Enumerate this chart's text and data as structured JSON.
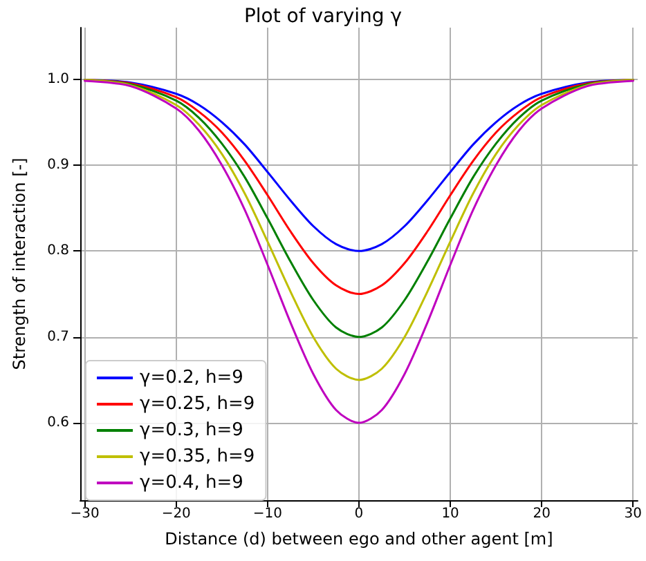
{
  "chart_data": {
    "type": "line",
    "title": "Plot of varying γ",
    "xlabel": "Distance (d) between ego and other agent [m]",
    "ylabel": "Strength of interaction [-]",
    "x": [
      -30,
      -25,
      -20,
      -17.5,
      -15,
      -12.5,
      -10,
      -7.5,
      -5,
      -2.5,
      0,
      2.5,
      5,
      7.5,
      10,
      12.5,
      15,
      17.5,
      20,
      25,
      30
    ],
    "series": [
      {
        "name": "γ=0.2, h=9",
        "color": "#0000ff",
        "values": [
          0.999,
          0.996,
          0.983,
          0.97,
          0.95,
          0.924,
          0.892,
          0.859,
          0.829,
          0.808,
          0.8,
          0.808,
          0.829,
          0.859,
          0.892,
          0.924,
          0.95,
          0.97,
          0.983,
          0.996,
          0.999
        ]
      },
      {
        "name": "γ=0.25, h=9",
        "color": "#ff0000",
        "values": [
          0.999,
          0.995,
          0.979,
          0.962,
          0.938,
          0.905,
          0.865,
          0.823,
          0.786,
          0.76,
          0.75,
          0.76,
          0.786,
          0.823,
          0.865,
          0.905,
          0.938,
          0.962,
          0.979,
          0.995,
          0.999
        ]
      },
      {
        "name": "γ=0.3, h=9",
        "color": "#008000",
        "values": [
          0.999,
          0.994,
          0.975,
          0.955,
          0.925,
          0.886,
          0.838,
          0.788,
          0.743,
          0.711,
          0.7,
          0.711,
          0.743,
          0.788,
          0.838,
          0.886,
          0.925,
          0.955,
          0.975,
          0.994,
          0.999
        ]
      },
      {
        "name": "γ=0.35, h=9",
        "color": "#bfbf00",
        "values": [
          0.999,
          0.993,
          0.97,
          0.947,
          0.913,
          0.867,
          0.811,
          0.753,
          0.7,
          0.663,
          0.65,
          0.663,
          0.7,
          0.753,
          0.811,
          0.867,
          0.913,
          0.947,
          0.97,
          0.993,
          0.999
        ]
      },
      {
        "name": "γ=0.4, h=9",
        "color": "#bf00bf",
        "values": [
          0.998,
          0.992,
          0.966,
          0.94,
          0.9,
          0.848,
          0.784,
          0.717,
          0.657,
          0.615,
          0.6,
          0.615,
          0.657,
          0.717,
          0.784,
          0.848,
          0.9,
          0.94,
          0.966,
          0.992,
          0.998
        ]
      }
    ],
    "xlim": [
      -30.5,
      30.5
    ],
    "xticks": [
      -30,
      -20,
      -10,
      0,
      10,
      20,
      30
    ],
    "ylim": [
      0.51,
      1.06
    ],
    "yticks": [
      0.6,
      0.7,
      0.8,
      0.9,
      {
        "value": 1,
        "label": "1.0"
      }
    ],
    "grid": true,
    "legend": "bottom left",
    "marker": "none",
    "line_style": "solid"
  }
}
